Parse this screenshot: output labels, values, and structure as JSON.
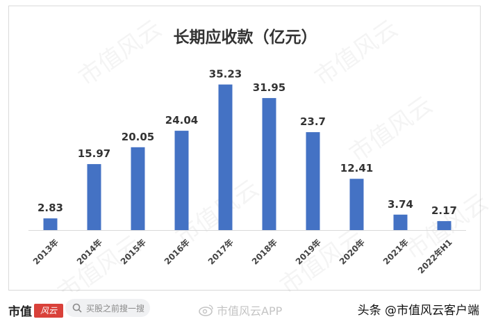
{
  "chart_data": {
    "type": "bar",
    "title": "长期应收款（亿元）",
    "categories": [
      "2013年",
      "2014年",
      "2015年",
      "2016年",
      "2017年",
      "2018年",
      "2019年",
      "2020年",
      "2021年",
      "2022年H1"
    ],
    "values": [
      2.83,
      15.97,
      20.05,
      24.04,
      35.23,
      31.95,
      23.7,
      12.41,
      3.74,
      2.17
    ],
    "data_labels": [
      "2.83",
      "15.97",
      "20.05",
      "24.04",
      "35.23",
      "31.95",
      "23.7",
      "12.41",
      "3.74",
      "2.17"
    ],
    "ylim": [
      0,
      36
    ],
    "bar_color": "#4472c4",
    "grid": false,
    "legend": "none"
  },
  "watermark_text": "市值风云",
  "footer": {
    "brand": "市值",
    "brand_logo": "风云",
    "search_placeholder": "买股之前搜一搜",
    "app_watermark": "市值风云APP",
    "author": "头条 @市值风云客户端"
  },
  "icons": {
    "search": "search-icon",
    "weibo": "weibo-icon"
  }
}
